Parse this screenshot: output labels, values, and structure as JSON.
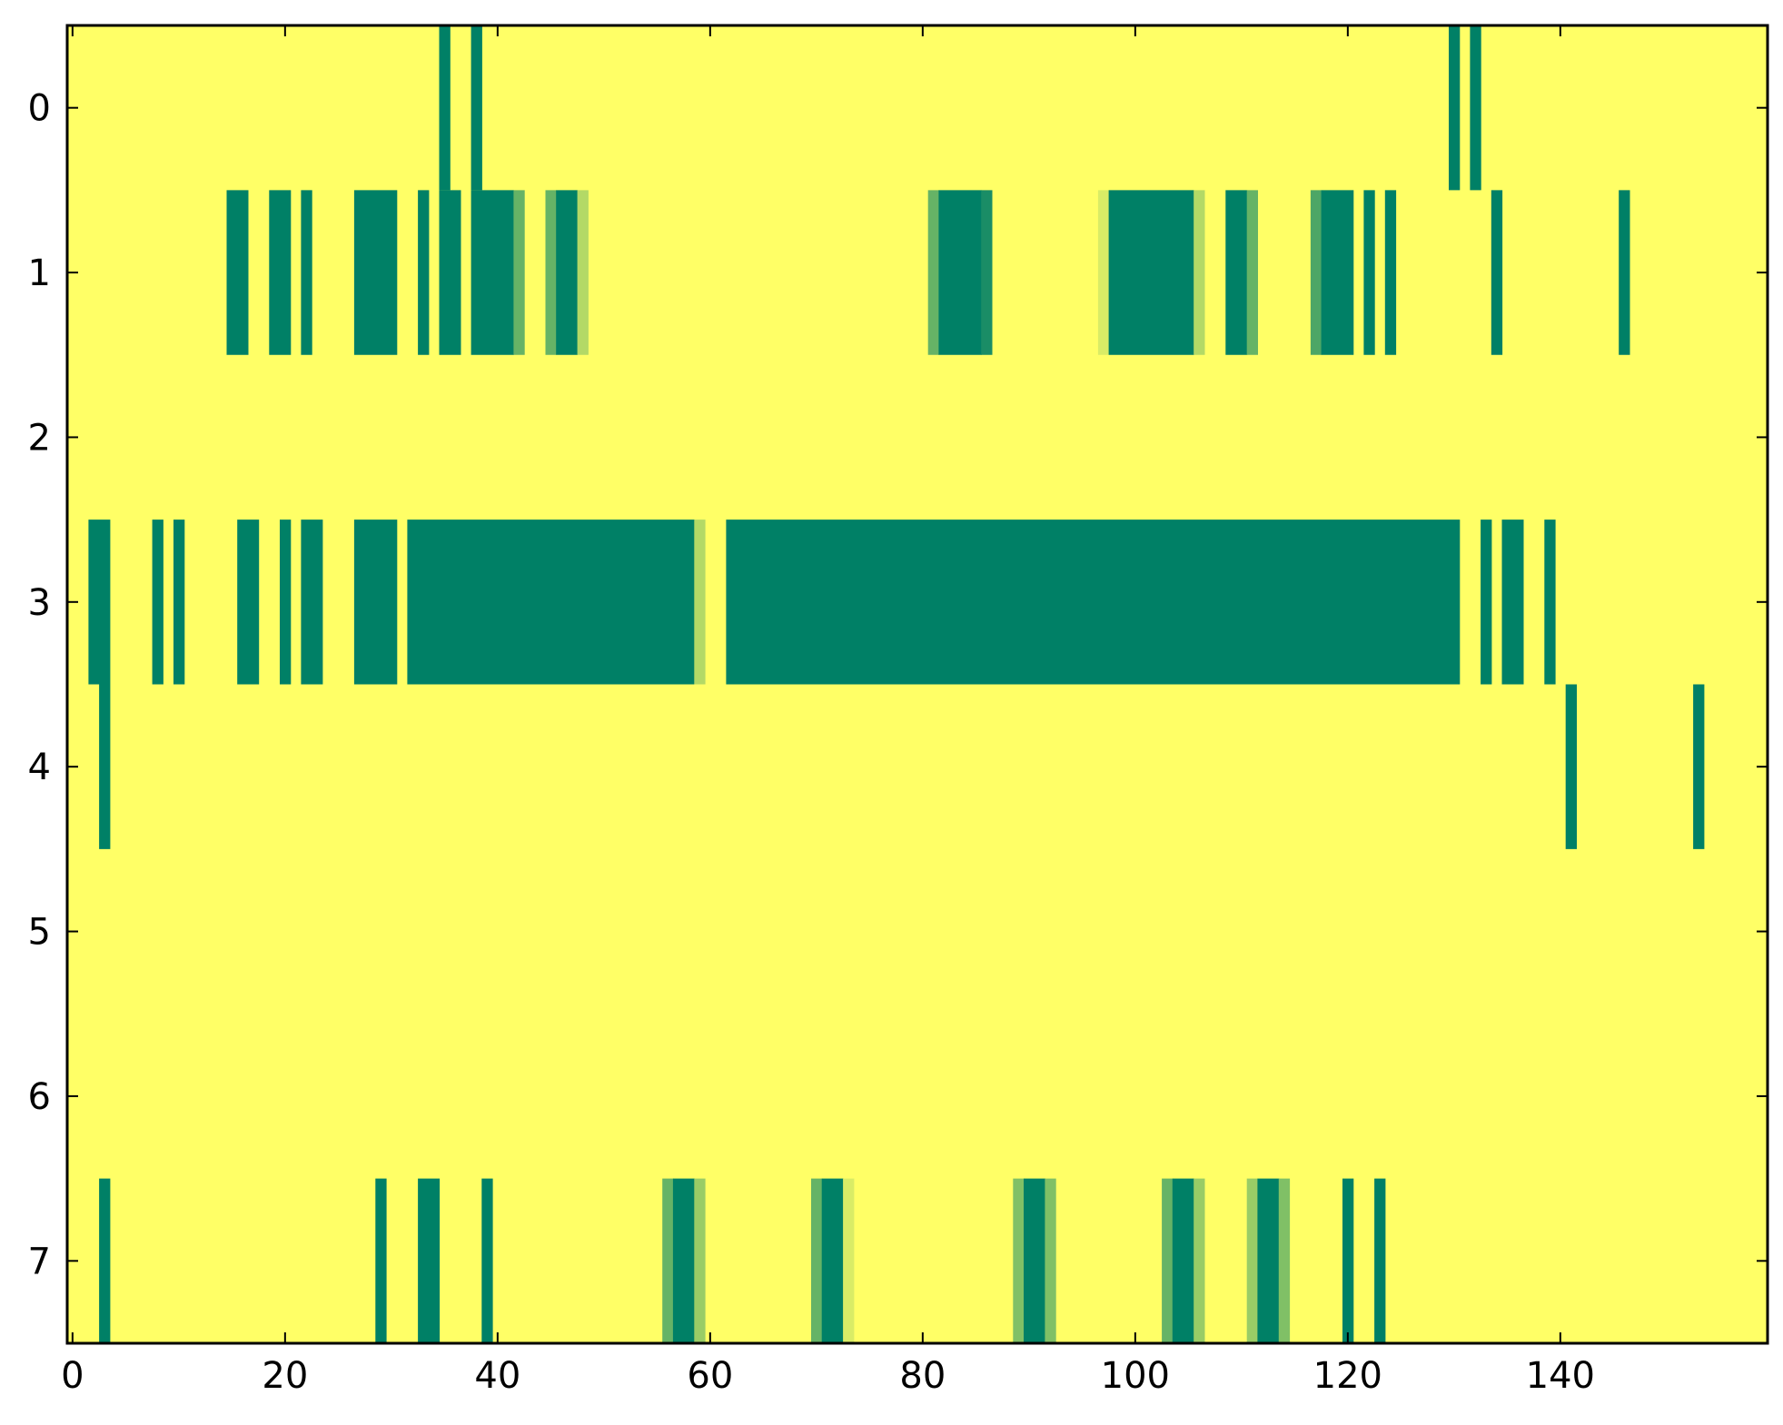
{
  "chart_data": {
    "type": "heatmap",
    "title": "",
    "xlabel": "",
    "ylabel": "",
    "xlim": [
      -0.5,
      159.5
    ],
    "ylim": [
      7.5,
      -0.5
    ],
    "grid": false,
    "colormap": "summer",
    "colors": {
      "low": "#008066",
      "mid_low": "#66b266",
      "mid_high": "#c8e366",
      "high": "#ffff66",
      "frame": "#000000"
    },
    "x_ticks": [
      {
        "value": 0,
        "label": "0"
      },
      {
        "value": 20,
        "label": "20"
      },
      {
        "value": 40,
        "label": "40"
      },
      {
        "value": 60,
        "label": "60"
      },
      {
        "value": 80,
        "label": "80"
      },
      {
        "value": 100,
        "label": "100"
      },
      {
        "value": 120,
        "label": "120"
      },
      {
        "value": 140,
        "label": "140"
      }
    ],
    "y_ticks": [
      {
        "value": 0,
        "label": "0"
      },
      {
        "value": 1,
        "label": "1"
      },
      {
        "value": 2,
        "label": "2"
      },
      {
        "value": 3,
        "label": "3"
      },
      {
        "value": 4,
        "label": "4"
      },
      {
        "value": 5,
        "label": "5"
      },
      {
        "value": 6,
        "label": "6"
      },
      {
        "value": 7,
        "label": "7"
      }
    ],
    "n_rows": 8,
    "n_cols": 160,
    "background_value": 1.0,
    "cells_note_segments": "each segment is [row, x_start, x_end, value] with value 0 = dark green, 1 = yellow",
    "segments": [
      [
        0,
        35,
        35,
        0
      ],
      [
        0,
        38,
        38,
        0
      ],
      [
        0,
        130,
        130,
        0
      ],
      [
        0,
        132,
        132,
        0
      ],
      [
        1,
        15,
        16,
        0
      ],
      [
        1,
        19,
        20,
        0
      ],
      [
        1,
        22,
        22,
        0
      ],
      [
        1,
        27,
        30,
        0
      ],
      [
        1,
        33,
        33,
        0
      ],
      [
        1,
        35,
        36,
        0
      ],
      [
        1,
        38,
        41,
        0
      ],
      [
        1,
        42,
        42,
        0.4
      ],
      [
        1,
        45,
        45,
        0.4
      ],
      [
        1,
        46,
        47,
        0
      ],
      [
        1,
        48,
        48,
        0.7
      ],
      [
        1,
        81,
        81,
        0.4
      ],
      [
        1,
        82,
        85,
        0
      ],
      [
        1,
        86,
        86,
        0.1
      ],
      [
        1,
        97,
        97,
        0.85
      ],
      [
        1,
        98,
        105,
        0
      ],
      [
        1,
        106,
        106,
        0.7
      ],
      [
        1,
        109,
        110,
        0
      ],
      [
        1,
        111,
        111,
        0.4
      ],
      [
        1,
        117,
        117,
        0.3
      ],
      [
        1,
        118,
        120,
        0
      ],
      [
        1,
        122,
        122,
        0
      ],
      [
        1,
        124,
        124,
        0
      ],
      [
        1,
        134,
        134,
        0
      ],
      [
        1,
        146,
        146,
        0
      ],
      [
        3,
        2,
        3,
        0
      ],
      [
        3,
        8,
        8,
        0
      ],
      [
        3,
        10,
        10,
        0
      ],
      [
        3,
        16,
        17,
        0
      ],
      [
        3,
        20,
        20,
        0
      ],
      [
        3,
        22,
        23,
        0
      ],
      [
        3,
        27,
        30,
        0
      ],
      [
        3,
        32,
        58,
        0
      ],
      [
        3,
        59,
        59,
        0.7
      ],
      [
        3,
        62,
        130,
        0
      ],
      [
        3,
        133,
        133,
        0
      ],
      [
        3,
        135,
        136,
        0
      ],
      [
        3,
        139,
        139,
        0
      ],
      [
        4,
        3,
        3,
        0
      ],
      [
        4,
        141,
        141,
        0
      ],
      [
        4,
        153,
        153,
        0
      ],
      [
        7,
        3,
        3,
        0
      ],
      [
        7,
        29,
        29,
        0
      ],
      [
        7,
        33,
        34,
        0
      ],
      [
        7,
        39,
        39,
        0
      ],
      [
        7,
        56,
        56,
        0.4
      ],
      [
        7,
        57,
        58,
        0
      ],
      [
        7,
        59,
        59,
        0.6
      ],
      [
        7,
        70,
        70,
        0.4
      ],
      [
        7,
        71,
        72,
        0
      ],
      [
        7,
        73,
        73,
        0.85
      ],
      [
        7,
        89,
        89,
        0.5
      ],
      [
        7,
        90,
        91,
        0
      ],
      [
        7,
        92,
        92,
        0.5
      ],
      [
        7,
        103,
        103,
        0.4
      ],
      [
        7,
        104,
        105,
        0
      ],
      [
        7,
        106,
        106,
        0.6
      ],
      [
        7,
        111,
        111,
        0.6
      ],
      [
        7,
        112,
        113,
        0
      ],
      [
        7,
        114,
        114,
        0.5
      ],
      [
        7,
        120,
        120,
        0
      ],
      [
        7,
        123,
        123,
        0
      ]
    ]
  }
}
